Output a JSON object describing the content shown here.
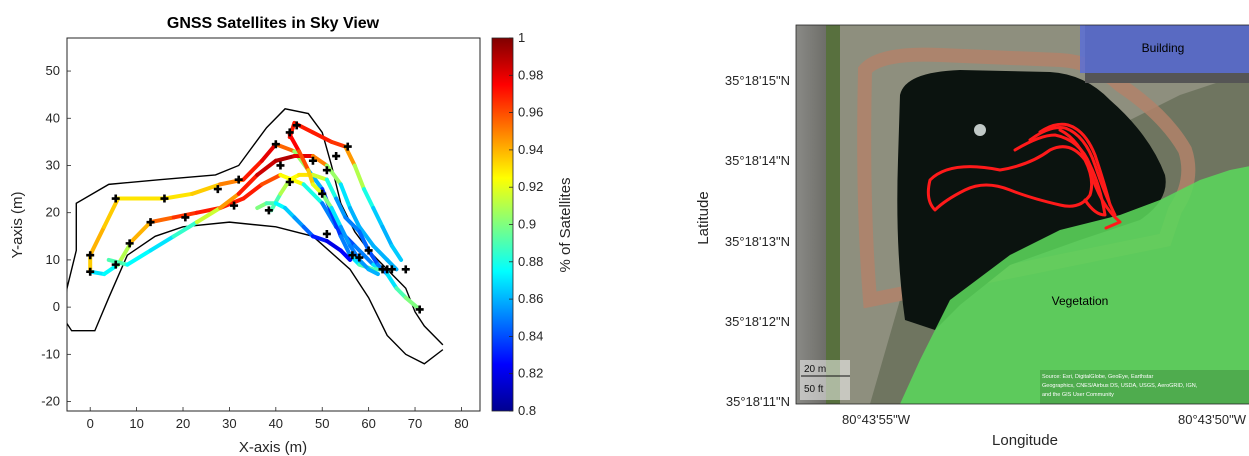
{
  "chart_data": [
    {
      "type": "line",
      "title": "GNSS Satellites in Sky View",
      "xlabel": "X-axis (m)",
      "ylabel": "Y-axis (m)",
      "xlim": [
        -5,
        84
      ],
      "ylim": [
        -22,
        57
      ],
      "xticks": [
        0,
        10,
        20,
        30,
        40,
        50,
        60,
        70,
        80
      ],
      "yticks": [
        -20,
        -10,
        0,
        10,
        20,
        30,
        40,
        50
      ],
      "colorbar": {
        "label": "% of Satellites",
        "range": [
          0.8,
          1
        ],
        "ticks": [
          "0.8",
          "0.82",
          "0.84",
          "0.86",
          "0.88",
          "0.9",
          "0.92",
          "0.94",
          "0.96",
          "0.98",
          "1"
        ]
      },
      "boundary": [
        [
          76,
          -8
        ],
        [
          72,
          -4
        ],
        [
          70,
          -1
        ],
        [
          68,
          4
        ],
        [
          64,
          8
        ],
        [
          60,
          12
        ],
        [
          57,
          16
        ],
        [
          54,
          22
        ],
        [
          52,
          30
        ],
        [
          50,
          37
        ],
        [
          47,
          41
        ],
        [
          42,
          42
        ],
        [
          38,
          38
        ],
        [
          32,
          30
        ],
        [
          27,
          28
        ],
        [
          15,
          27
        ],
        [
          4,
          26
        ],
        [
          -3,
          22
        ],
        [
          -3,
          12
        ],
        [
          -5,
          4
        ],
        [
          -6,
          -2
        ],
        [
          -4,
          -5
        ],
        [
          1,
          -5
        ],
        [
          4,
          2
        ],
        [
          8,
          11
        ],
        [
          14,
          15
        ],
        [
          20,
          17
        ],
        [
          30,
          18
        ],
        [
          40,
          17
        ],
        [
          48,
          15
        ],
        [
          56,
          8
        ],
        [
          60,
          2
        ],
        [
          64,
          -6
        ],
        [
          68,
          -10
        ],
        [
          72,
          -12
        ],
        [
          76,
          -9
        ]
      ],
      "series": [
        {
          "points": [
            [
              0,
              7.5,
              0.88
            ],
            [
              3,
              7,
              0.86
            ],
            [
              6,
              9,
              0.89
            ],
            [
              9,
              14,
              0.93
            ],
            [
              13,
              18,
              0.95
            ],
            [
              18,
              19,
              0.96
            ],
            [
              23,
              20,
              0.97
            ],
            [
              28,
              21,
              0.97
            ],
            [
              33,
              23,
              0.97
            ],
            [
              37,
              26,
              0.97
            ],
            [
              41,
              28,
              0.95
            ],
            [
              46,
              26,
              0.9
            ],
            [
              50,
              22,
              0.86
            ],
            [
              53,
              17,
              0.84
            ],
            [
              57,
              13,
              0.84
            ],
            [
              61,
              9,
              0.86
            ],
            [
              64,
              7.5,
              0.88
            ]
          ]
        },
        {
          "points": [
            [
              0,
              7.5,
              0.93
            ],
            [
              0,
              11,
              0.94
            ],
            [
              3,
              17,
              0.94
            ],
            [
              6,
              23,
              0.93
            ],
            [
              11,
              23,
              0.93
            ],
            [
              16,
              23,
              0.93
            ],
            [
              22,
              24,
              0.93
            ],
            [
              28,
              26,
              0.94
            ],
            [
              33,
              27,
              0.96
            ],
            [
              37,
              31,
              0.98
            ],
            [
              40,
              34.5,
              0.98
            ],
            [
              44,
              33,
              0.93
            ],
            [
              47,
              29,
              0.88
            ],
            [
              50,
              25,
              0.84
            ],
            [
              52,
              20,
              0.83
            ],
            [
              54,
              15,
              0.84
            ],
            [
              56,
              11,
              0.86
            ],
            [
              58,
              9,
              0.88
            ],
            [
              61,
              8,
              0.9
            ],
            [
              63,
              8,
              0.88
            ]
          ]
        },
        {
          "points": [
            [
              4,
              10,
              0.9
            ],
            [
              8,
              9,
              0.88
            ],
            [
              13,
              12,
              0.87
            ],
            [
              18,
              15,
              0.87
            ],
            [
              23,
              18,
              0.9
            ],
            [
              28,
              21,
              0.93
            ],
            [
              32,
              24,
              0.96
            ],
            [
              36,
              28,
              0.98
            ],
            [
              40,
              31,
              0.99
            ],
            [
              44,
              32,
              0.99
            ],
            [
              48,
              32,
              0.97
            ],
            [
              51,
              30,
              0.93
            ],
            [
              54,
              26,
              0.88
            ],
            [
              56,
              21,
              0.86
            ],
            [
              58,
              17,
              0.86
            ],
            [
              61,
              13,
              0.86
            ],
            [
              64,
              10,
              0.86
            ],
            [
              66,
              8,
              0.86
            ]
          ]
        },
        {
          "points": [
            [
              39,
              20.5,
              0.88
            ],
            [
              41,
              24,
              0.9
            ],
            [
              43,
              27,
              0.92
            ],
            [
              45,
              28,
              0.93
            ],
            [
              48,
              28,
              0.93
            ],
            [
              51,
              27,
              0.9
            ],
            [
              53,
              23,
              0.86
            ],
            [
              55,
              19,
              0.85
            ],
            [
              58,
              16,
              0.85
            ],
            [
              60,
              12,
              0.84
            ],
            [
              62,
              9,
              0.84
            ],
            [
              64,
              7,
              0.86
            ],
            [
              66,
              4,
              0.88
            ],
            [
              68,
              2,
              0.9
            ],
            [
              71,
              -0.5,
              0.9
            ]
          ]
        },
        {
          "points": [
            [
              43,
              36,
              0.97
            ],
            [
              44,
              39,
              0.97
            ],
            [
              48,
              37,
              0.97
            ],
            [
              52,
              35,
              0.97
            ],
            [
              55,
              34,
              0.96
            ],
            [
              57,
              30,
              0.93
            ],
            [
              59,
              25,
              0.89
            ],
            [
              61,
              21,
              0.87
            ],
            [
              63,
              17,
              0.86
            ],
            [
              65,
              13,
              0.86
            ],
            [
              67,
              10,
              0.87
            ]
          ]
        },
        {
          "points": [
            [
              43,
              36.5,
              0.98
            ],
            [
              45,
              33,
              0.97
            ],
            [
              47,
              29,
              0.95
            ],
            [
              48,
              26,
              0.92
            ],
            [
              50,
              24,
              0.92
            ],
            [
              52,
              21,
              0.88
            ],
            [
              54,
              17,
              0.86
            ],
            [
              56,
              13,
              0.85
            ],
            [
              58,
              10,
              0.85
            ],
            [
              60,
              8,
              0.86
            ],
            [
              62,
              7,
              0.86
            ]
          ]
        },
        {
          "points": [
            [
              36,
              21,
              0.9
            ],
            [
              38,
              22,
              0.9
            ],
            [
              40,
              22,
              0.88
            ],
            [
              42,
              21,
              0.87
            ],
            [
              44,
              19,
              0.86
            ],
            [
              46,
              17,
              0.85
            ],
            [
              48,
              15,
              0.84
            ],
            [
              51,
              14,
              0.82
            ],
            [
              54,
              12,
              0.82
            ],
            [
              56,
              10,
              0.83
            ]
          ]
        }
      ],
      "markers": [
        [
          0,
          7.5
        ],
        [
          0,
          11
        ],
        [
          5.5,
          9
        ],
        [
          8.5,
          13.5
        ],
        [
          13,
          18
        ],
        [
          5.5,
          23
        ],
        [
          16,
          23
        ],
        [
          20.5,
          19
        ],
        [
          27.5,
          25
        ],
        [
          31,
          21.5
        ],
        [
          32,
          27
        ],
        [
          38.5,
          20.5
        ],
        [
          40,
          34.5
        ],
        [
          41,
          30
        ],
        [
          43,
          26.5
        ],
        [
          44.5,
          38.5
        ],
        [
          43,
          37
        ],
        [
          48,
          31
        ],
        [
          50,
          24
        ],
        [
          51,
          29
        ],
        [
          51,
          15.5
        ],
        [
          53,
          32
        ],
        [
          55.5,
          34
        ],
        [
          56.5,
          11
        ],
        [
          58,
          10.5
        ],
        [
          60,
          12
        ],
        [
          63,
          8
        ],
        [
          64,
          8
        ],
        [
          65,
          8
        ],
        [
          68,
          8
        ],
        [
          71,
          -0.5
        ]
      ]
    }
  ],
  "map": {
    "ylabel": "Latitude",
    "xlabel": "Longitude",
    "lat_ticks": [
      "35°18'15\"N",
      "35°18'14\"N",
      "35°18'13\"N",
      "35°18'12\"N",
      "35°18'11\"N"
    ],
    "lon_ticks": [
      "80°43'55\"W",
      "80°43'50\"W"
    ],
    "labels": {
      "building": "Building",
      "vegetation": "Vegetation"
    },
    "scale_bar": {
      "metric": "20 m",
      "imperial": "50 ft"
    },
    "attribution": [
      "Source: Esri, DigitalGlobe, GeoEye, Earthstar",
      "Geographics, CNES/Airbus DS, USDA, USGS, AeroGRID, IGN,",
      "and the GIS User Community"
    ],
    "colors": {
      "path": "#ff1a1a",
      "vegetation": "#5bd65b",
      "building": "#5b6fd6",
      "water": "#0b130f"
    }
  }
}
